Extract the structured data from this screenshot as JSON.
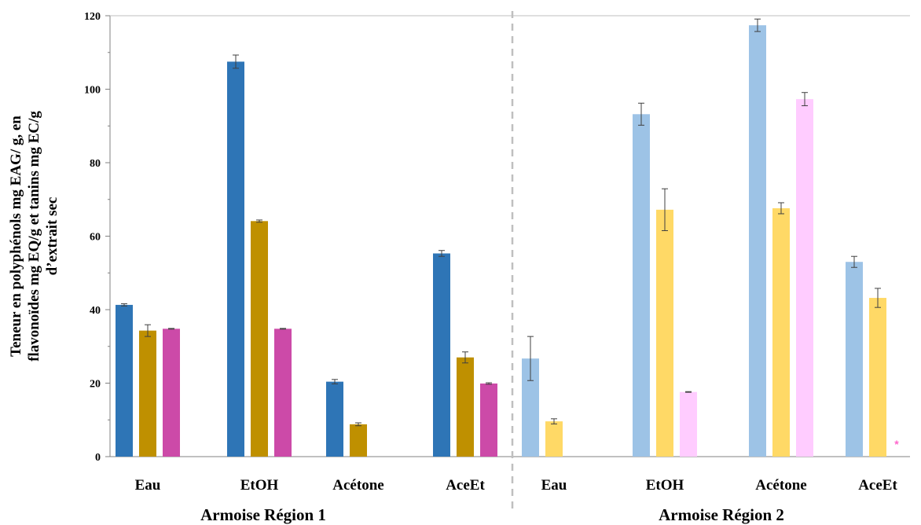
{
  "chart_data": {
    "type": "bar",
    "ylabel_lines": [
      "Teneur en polyphénols mg EAG/ g, en",
      "flavonoïdes mg EQ/g et tanins mg EC/g",
      "d’extrait sec"
    ],
    "ylim": [
      0,
      120
    ],
    "yticks": [
      "0",
      "20",
      "40",
      "60",
      "80",
      "100",
      "120"
    ],
    "grid": false,
    "legend": "none",
    "groups": [
      {
        "label": "Armoise  Région 1",
        "categories": [
          "Eau",
          "EtOH",
          "Acétone",
          "AceEt"
        ],
        "series": [
          {
            "values": [
              41.3,
              107.5,
              20.4,
              55.3
            ],
            "errors": [
              0.3,
              1.8,
              0.6,
              0.8
            ],
            "color": "#2e75b6"
          },
          {
            "values": [
              34.3,
              64.1,
              8.8,
              27.0
            ],
            "errors": [
              1.6,
              0.3,
              0.4,
              1.5
            ],
            "color": "#bf9000"
          },
          {
            "values": [
              34.8,
              34.8,
              null,
              19.9
            ],
            "errors": [
              0.1,
              0.1,
              null,
              0.2
            ],
            "color": "#cc4aa8"
          }
        ]
      },
      {
        "label": "Armoise  Région 2",
        "categories": [
          "Eau",
          "EtOH",
          "Acétone",
          "AceEt"
        ],
        "series": [
          {
            "values": [
              26.7,
              93.2,
              117.4,
              53.0
            ],
            "errors": [
              6.0,
              3.0,
              1.7,
              1.5
            ],
            "color": "#9dc3e6"
          },
          {
            "values": [
              9.6,
              67.2,
              67.6,
              43.2
            ],
            "errors": [
              0.7,
              5.7,
              1.5,
              2.6
            ],
            "color": "#ffd966"
          },
          {
            "values": [
              null,
              17.6,
              97.3,
              null
            ],
            "errors": [
              null,
              0.1,
              1.8,
              null
            ],
            "color": "#ffccff"
          }
        ]
      }
    ],
    "annotation": {
      "text": "*",
      "color": "#ff66cc"
    }
  }
}
